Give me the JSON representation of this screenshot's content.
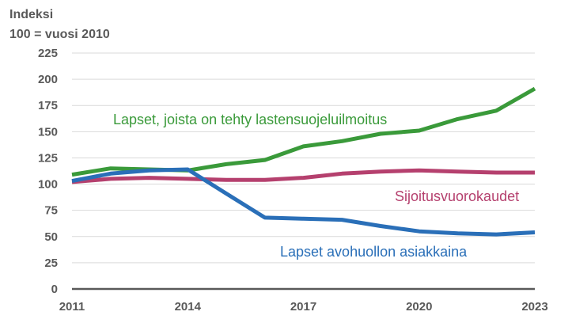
{
  "chart_data": {
    "type": "line",
    "title": "",
    "ylabel_lines": [
      "Indeksi",
      "100 = vuosi 2010"
    ],
    "xlabel": "",
    "x": [
      2011,
      2012,
      2013,
      2014,
      2015,
      2016,
      2017,
      2018,
      2019,
      2020,
      2021,
      2022,
      2023
    ],
    "x_ticks": [
      "2011",
      "2014",
      "2017",
      "2020",
      "2023"
    ],
    "xlim": [
      2011,
      2023
    ],
    "ylim": [
      0,
      225
    ],
    "y_ticks": [
      "0",
      "25",
      "50",
      "75",
      "100",
      "125",
      "150",
      "175",
      "200",
      "225"
    ],
    "grid": true,
    "series": [
      {
        "name": "Lapset, joista on tehty lastensuojeluilmoitus",
        "color": "#3a9a3a",
        "values": [
          109,
          115,
          114,
          113,
          119,
          123,
          136,
          141,
          148,
          151,
          162,
          170,
          191
        ]
      },
      {
        "name": "Sijoitusvuorokaudet",
        "color": "#b5406e",
        "values": [
          102,
          105,
          106,
          105,
          104,
          104,
          106,
          110,
          112,
          113,
          112,
          111,
          111
        ]
      },
      {
        "name": "Lapset avohuollon asiakkaina",
        "color": "#2a6fb8",
        "values": [
          103,
          110,
          113,
          114,
          91,
          68,
          67,
          66,
          60,
          55,
          53,
          52,
          54
        ]
      }
    ]
  }
}
